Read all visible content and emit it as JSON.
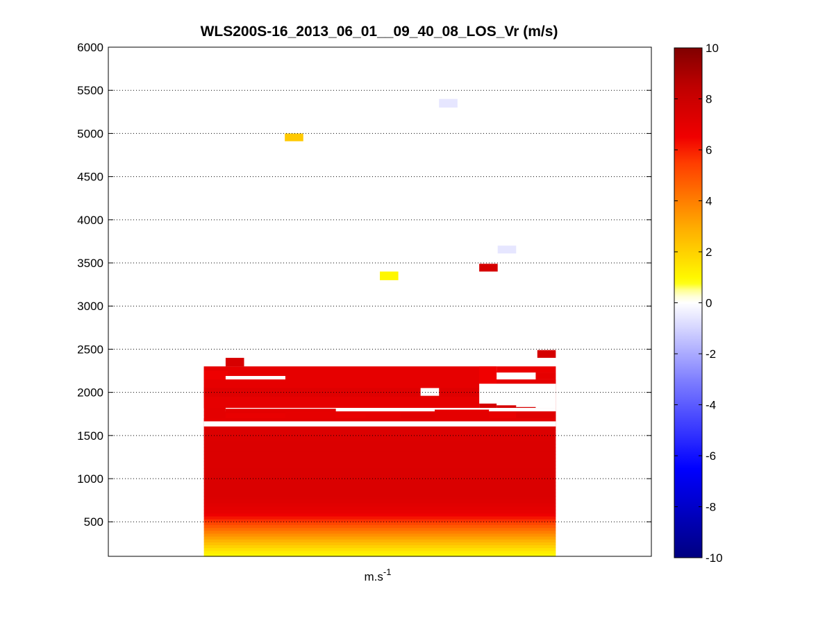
{
  "chart_data": {
    "type": "heatmap",
    "title": "WLS200S-16_2013_06_01__09_40_08_LOS_Vr (m/s)",
    "xlabel": "m.s",
    "xlabel_superscript": "-1",
    "ylabel": "",
    "ylim": [
      100,
      6000
    ],
    "yticks": [
      500,
      1000,
      1500,
      2000,
      2500,
      3000,
      3500,
      4000,
      4500,
      5000,
      5500,
      6000
    ],
    "grid": "horizontal dotted",
    "x_range": [
      0,
      1
    ],
    "colorbar": {
      "range": [
        -10,
        10
      ],
      "ticks": [
        -10,
        -8,
        -6,
        -4,
        -2,
        0,
        2,
        4,
        6,
        8,
        10
      ],
      "colormap": "blue-white-yellow-red",
      "placement": "right"
    },
    "main_region": {
      "x_start": 0.176,
      "x_end": 0.824,
      "profile": [
        {
          "altitude": 130,
          "value": 1.0
        },
        {
          "altitude": 200,
          "value": 1.8
        },
        {
          "altitude": 300,
          "value": 3.0
        },
        {
          "altitude": 400,
          "value": 4.2
        },
        {
          "altitude": 500,
          "value": 5.5
        },
        {
          "altitude": 600,
          "value": 6.8
        },
        {
          "altitude": 800,
          "value": 7.4
        },
        {
          "altitude": 1600,
          "value": 7.3
        },
        {
          "altitude": 1700,
          "value": 7.0
        },
        {
          "altitude": 2300,
          "value": 6.9
        }
      ]
    },
    "cells": [
      {
        "x0": 0.176,
        "x1": 0.824,
        "y0": 1605,
        "y1": 1665,
        "value": null
      },
      {
        "x0": 0.176,
        "x1": 0.216,
        "y0": 1665,
        "y1": 1700,
        "value": 6.9
      },
      {
        "x0": 0.216,
        "x1": 0.824,
        "y0": 1665,
        "y1": 1700,
        "value": 7.0
      },
      {
        "x0": 0.216,
        "x1": 0.326,
        "y0": 1700,
        "y1": 1760,
        "value": 6.8
      },
      {
        "x0": 0.326,
        "x1": 0.419,
        "y0": 1700,
        "y1": 1780,
        "value": 6.9
      },
      {
        "x0": 0.419,
        "x1": 0.474,
        "y0": 1700,
        "y1": 1755,
        "value": 6.8
      },
      {
        "x0": 0.474,
        "x1": 0.538,
        "y0": 1700,
        "y1": 1770,
        "value": 6.9
      },
      {
        "x0": 0.538,
        "x1": 0.601,
        "y0": 1700,
        "y1": 1760,
        "value": 7.1
      },
      {
        "x0": 0.601,
        "x1": 0.701,
        "y0": 1720,
        "y1": 1750,
        "value": 7.0
      },
      {
        "x0": 0.701,
        "x1": 0.751,
        "y0": 1700,
        "y1": 1760,
        "value": 6.8
      },
      {
        "x0": 0.751,
        "x1": 0.824,
        "y0": 1700,
        "y1": 1780,
        "value": 7.2
      },
      {
        "x0": 0.176,
        "x1": 0.824,
        "y0": 1820,
        "y1": 2300,
        "value": 6.9
      },
      {
        "x0": 0.176,
        "x1": 0.824,
        "y0": 1950,
        "y1": 2050,
        "value": 7.2
      },
      {
        "x0": 0.176,
        "x1": 0.22,
        "y0": 2150,
        "y1": 2250,
        "value": 6.6
      },
      {
        "x0": 0.216,
        "x1": 0.326,
        "y0": 2150,
        "y1": 2190,
        "value": null
      },
      {
        "x0": 0.575,
        "x1": 0.609,
        "y0": 1960,
        "y1": 2050,
        "value": null
      },
      {
        "x0": 0.683,
        "x1": 0.715,
        "y0": 2100,
        "y1": 2300,
        "value": 6.5
      },
      {
        "x0": 0.715,
        "x1": 0.824,
        "y0": 2150,
        "y1": 2300,
        "value": null
      },
      {
        "x0": 0.715,
        "x1": 0.824,
        "y0": 2230,
        "y1": 2300,
        "value": 6.7
      },
      {
        "x0": 0.787,
        "x1": 0.824,
        "y0": 2150,
        "y1": 2230,
        "value": 6.9
      },
      {
        "x0": 0.683,
        "x1": 0.824,
        "y0": 1820,
        "y1": 2100,
        "value": null
      },
      {
        "x0": 0.683,
        "x1": 0.715,
        "y0": 1820,
        "y1": 1870,
        "value": 7.6
      },
      {
        "x0": 0.715,
        "x1": 0.751,
        "y0": 1820,
        "y1": 1850,
        "value": 7.5
      },
      {
        "x0": 0.751,
        "x1": 0.787,
        "y0": 1820,
        "y1": 1830,
        "value": 7.5
      },
      {
        "x0": 0.787,
        "x1": 0.824,
        "y0": 1780,
        "y1": 1810,
        "value": 7.5
      },
      {
        "x0": 0.216,
        "x1": 0.824,
        "y0": 1780,
        "y1": 1820,
        "value": null
      },
      {
        "x0": 0.216,
        "x1": 0.419,
        "y0": 1780,
        "y1": 1810,
        "value": 7.0
      },
      {
        "x0": 0.601,
        "x1": 0.701,
        "y0": 1780,
        "y1": 1800,
        "value": 6.9
      },
      {
        "x0": 0.216,
        "x1": 0.25,
        "y0": 2300,
        "y1": 2400,
        "value": 7.5
      },
      {
        "x0": 0.79,
        "x1": 0.824,
        "y0": 2400,
        "y1": 2490,
        "value": 7.6
      },
      {
        "x0": 0.325,
        "x1": 0.359,
        "y0": 4910,
        "y1": 5000,
        "value": 2.2
      },
      {
        "x0": 0.609,
        "x1": 0.643,
        "y0": 5300,
        "y1": 5400,
        "value": -0.6
      },
      {
        "x0": 0.5,
        "x1": 0.534,
        "y0": 3300,
        "y1": 3400,
        "value": 1.0
      },
      {
        "x0": 0.683,
        "x1": 0.717,
        "y0": 3400,
        "y1": 3490,
        "value": 7.6
      },
      {
        "x0": 0.717,
        "x1": 0.751,
        "y0": 3610,
        "y1": 3700,
        "value": -0.6
      }
    ]
  }
}
